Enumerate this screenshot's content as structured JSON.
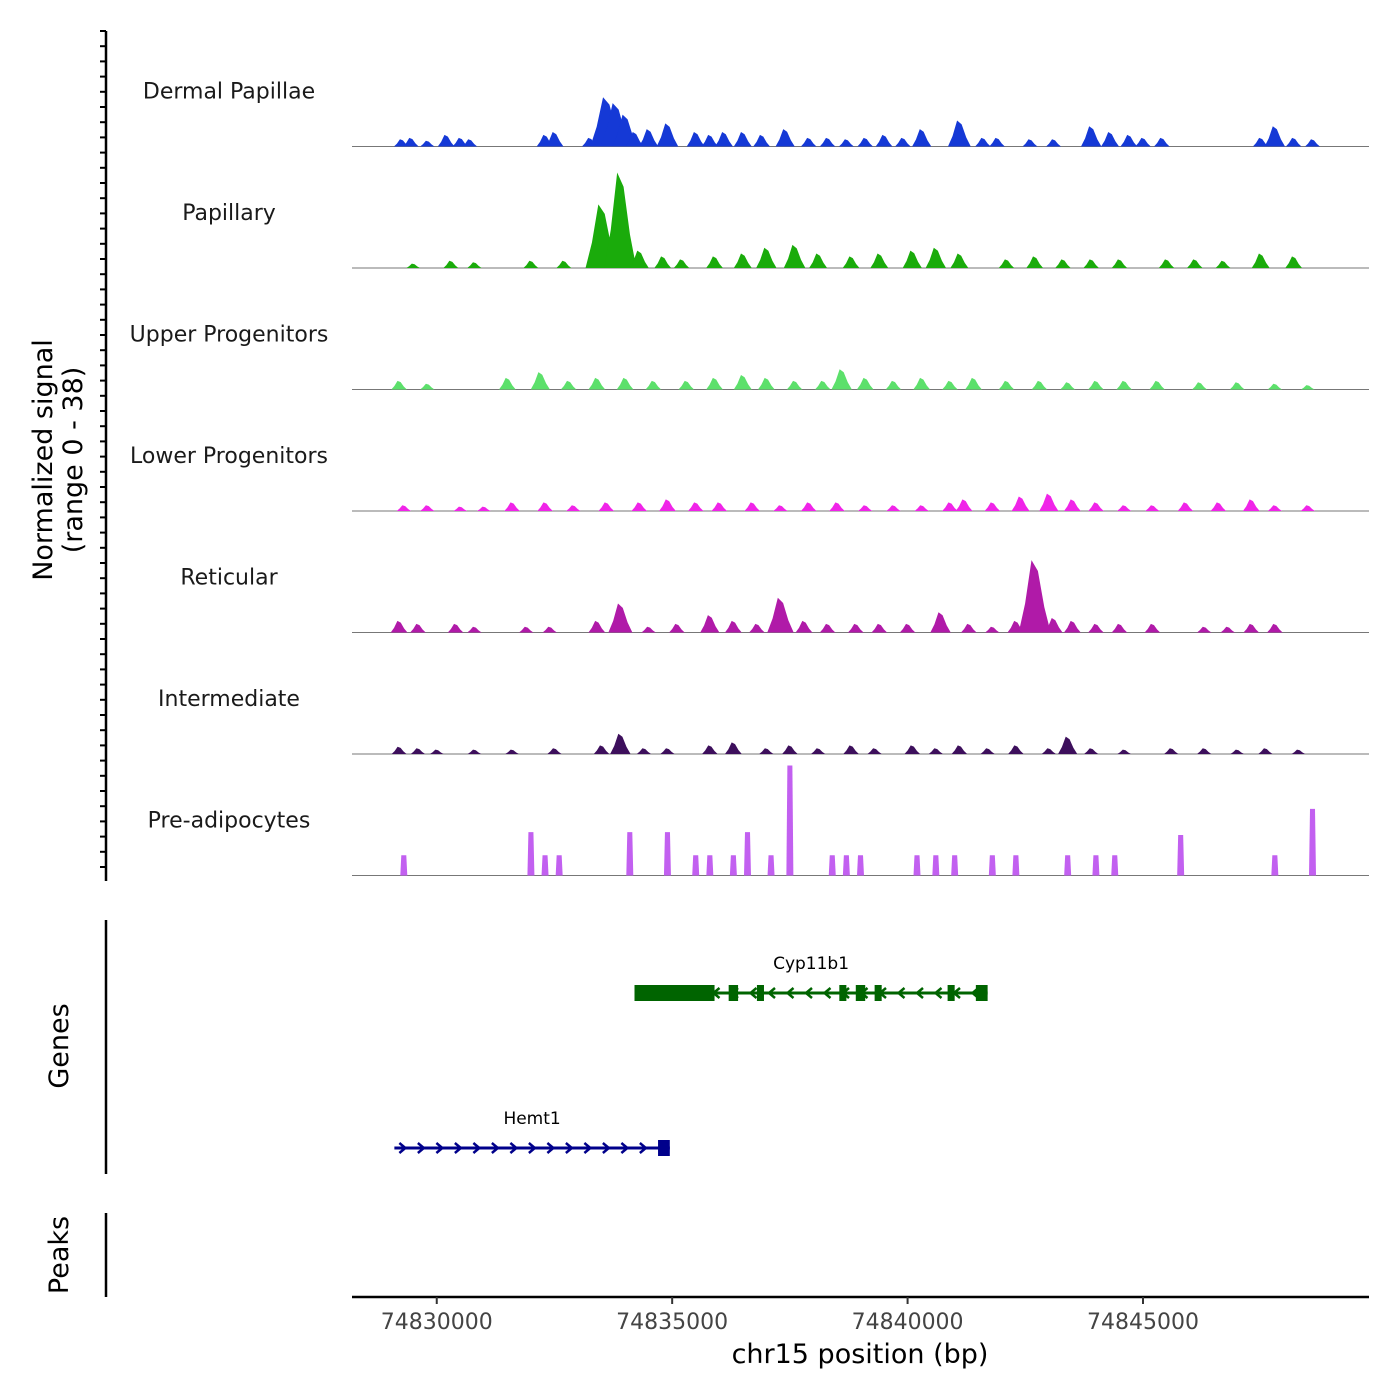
{
  "chart_data": {
    "type": "area",
    "title": "",
    "region": "chr15",
    "xlabel": "chr15 position (bp)",
    "ylabel_line1": "Normalized signal",
    "ylabel_line2": "(range 0 - 38)",
    "xlim": [
      74828200,
      74849800
    ],
    "ylim": [
      0,
      38
    ],
    "x_ticks": [
      74830000,
      74835000,
      74840000,
      74845000
    ],
    "x_tick_labels": [
      "74830000",
      "74835000",
      "74840000",
      "74845000"
    ],
    "panels": {
      "genes": "Genes",
      "peaks": "Peaks"
    },
    "tracks": [
      {
        "name": "Dermal Papillae",
        "color": "#1539d6",
        "peaks": [
          {
            "x": 74829250,
            "h": 2.5
          },
          {
            "x": 74829450,
            "h": 3
          },
          {
            "x": 74829800,
            "h": 2
          },
          {
            "x": 74830200,
            "h": 4
          },
          {
            "x": 74830500,
            "h": 3
          },
          {
            "x": 74830700,
            "h": 2.5
          },
          {
            "x": 74832300,
            "h": 4
          },
          {
            "x": 74832500,
            "h": 5
          },
          {
            "x": 74833250,
            "h": 3
          },
          {
            "x": 74833600,
            "h": 17
          },
          {
            "x": 74833800,
            "h": 15
          },
          {
            "x": 74834000,
            "h": 11
          },
          {
            "x": 74834200,
            "h": 5
          },
          {
            "x": 74834500,
            "h": 6
          },
          {
            "x": 74834900,
            "h": 8
          },
          {
            "x": 74835500,
            "h": 5
          },
          {
            "x": 74835800,
            "h": 4
          },
          {
            "x": 74836100,
            "h": 5
          },
          {
            "x": 74836500,
            "h": 5
          },
          {
            "x": 74836900,
            "h": 4
          },
          {
            "x": 74837400,
            "h": 6
          },
          {
            "x": 74837900,
            "h": 3
          },
          {
            "x": 74838300,
            "h": 3
          },
          {
            "x": 74838700,
            "h": 2.5
          },
          {
            "x": 74839100,
            "h": 3
          },
          {
            "x": 74839500,
            "h": 4
          },
          {
            "x": 74839900,
            "h": 3
          },
          {
            "x": 74840300,
            "h": 6
          },
          {
            "x": 74841100,
            "h": 9
          },
          {
            "x": 74841600,
            "h": 3
          },
          {
            "x": 74841900,
            "h": 3
          },
          {
            "x": 74842600,
            "h": 2.5
          },
          {
            "x": 74843100,
            "h": 2.5
          },
          {
            "x": 74843900,
            "h": 7
          },
          {
            "x": 74844300,
            "h": 5
          },
          {
            "x": 74844700,
            "h": 4
          },
          {
            "x": 74845000,
            "h": 3
          },
          {
            "x": 74845400,
            "h": 3
          },
          {
            "x": 74847500,
            "h": 3
          },
          {
            "x": 74847800,
            "h": 7
          },
          {
            "x": 74848200,
            "h": 3
          },
          {
            "x": 74848600,
            "h": 2.5
          }
        ]
      },
      {
        "name": "Papillary",
        "color": "#1aab0b",
        "peaks": [
          {
            "x": 74829500,
            "h": 1.5
          },
          {
            "x": 74830300,
            "h": 2.5
          },
          {
            "x": 74830800,
            "h": 2
          },
          {
            "x": 74832000,
            "h": 2.5
          },
          {
            "x": 74832700,
            "h": 2.5
          },
          {
            "x": 74833500,
            "h": 22
          },
          {
            "x": 74833900,
            "h": 33
          },
          {
            "x": 74834300,
            "h": 6
          },
          {
            "x": 74834800,
            "h": 4
          },
          {
            "x": 74835200,
            "h": 3
          },
          {
            "x": 74835900,
            "h": 4
          },
          {
            "x": 74836500,
            "h": 5
          },
          {
            "x": 74837000,
            "h": 7
          },
          {
            "x": 74837600,
            "h": 8
          },
          {
            "x": 74838100,
            "h": 5
          },
          {
            "x": 74838800,
            "h": 4
          },
          {
            "x": 74839400,
            "h": 5
          },
          {
            "x": 74840100,
            "h": 6
          },
          {
            "x": 74840600,
            "h": 7
          },
          {
            "x": 74841100,
            "h": 5
          },
          {
            "x": 74842100,
            "h": 3
          },
          {
            "x": 74842700,
            "h": 4
          },
          {
            "x": 74843300,
            "h": 3
          },
          {
            "x": 74843900,
            "h": 3
          },
          {
            "x": 74844500,
            "h": 3
          },
          {
            "x": 74845500,
            "h": 3
          },
          {
            "x": 74846100,
            "h": 3
          },
          {
            "x": 74846700,
            "h": 2.5
          },
          {
            "x": 74847500,
            "h": 5
          },
          {
            "x": 74848200,
            "h": 4
          }
        ]
      },
      {
        "name": "Upper Progenitors",
        "color": "#5ce06b",
        "peaks": [
          {
            "x": 74829200,
            "h": 3
          },
          {
            "x": 74829800,
            "h": 2
          },
          {
            "x": 74831500,
            "h": 4
          },
          {
            "x": 74832200,
            "h": 6
          },
          {
            "x": 74832800,
            "h": 3
          },
          {
            "x": 74833400,
            "h": 4
          },
          {
            "x": 74834000,
            "h": 4
          },
          {
            "x": 74834600,
            "h": 3
          },
          {
            "x": 74835300,
            "h": 3
          },
          {
            "x": 74835900,
            "h": 4
          },
          {
            "x": 74836500,
            "h": 5
          },
          {
            "x": 74837000,
            "h": 4
          },
          {
            "x": 74837600,
            "h": 3
          },
          {
            "x": 74838200,
            "h": 3
          },
          {
            "x": 74838600,
            "h": 7
          },
          {
            "x": 74839100,
            "h": 4
          },
          {
            "x": 74839700,
            "h": 3
          },
          {
            "x": 74840300,
            "h": 4
          },
          {
            "x": 74840900,
            "h": 3
          },
          {
            "x": 74841400,
            "h": 4
          },
          {
            "x": 74842100,
            "h": 3
          },
          {
            "x": 74842800,
            "h": 3
          },
          {
            "x": 74843400,
            "h": 2.5
          },
          {
            "x": 74844000,
            "h": 3
          },
          {
            "x": 74844600,
            "h": 3
          },
          {
            "x": 74845300,
            "h": 3
          },
          {
            "x": 74846200,
            "h": 2.5
          },
          {
            "x": 74847000,
            "h": 2.5
          },
          {
            "x": 74847800,
            "h": 2
          },
          {
            "x": 74848500,
            "h": 1.5
          }
        ]
      },
      {
        "name": "Lower Progenitors",
        "color": "#f024e8",
        "peaks": [
          {
            "x": 74829300,
            "h": 2
          },
          {
            "x": 74829800,
            "h": 2
          },
          {
            "x": 74830500,
            "h": 1.5
          },
          {
            "x": 74831000,
            "h": 1.5
          },
          {
            "x": 74831600,
            "h": 3
          },
          {
            "x": 74832300,
            "h": 3
          },
          {
            "x": 74832900,
            "h": 2
          },
          {
            "x": 74833600,
            "h": 3
          },
          {
            "x": 74834300,
            "h": 3
          },
          {
            "x": 74834900,
            "h": 4
          },
          {
            "x": 74835500,
            "h": 3
          },
          {
            "x": 74836000,
            "h": 3
          },
          {
            "x": 74836700,
            "h": 3
          },
          {
            "x": 74837300,
            "h": 2
          },
          {
            "x": 74837900,
            "h": 3
          },
          {
            "x": 74838500,
            "h": 3
          },
          {
            "x": 74839100,
            "h": 2
          },
          {
            "x": 74839700,
            "h": 2
          },
          {
            "x": 74840300,
            "h": 2
          },
          {
            "x": 74840900,
            "h": 3
          },
          {
            "x": 74841200,
            "h": 4
          },
          {
            "x": 74841800,
            "h": 3
          },
          {
            "x": 74842400,
            "h": 5
          },
          {
            "x": 74843000,
            "h": 6
          },
          {
            "x": 74843500,
            "h": 4
          },
          {
            "x": 74844000,
            "h": 3
          },
          {
            "x": 74844600,
            "h": 2
          },
          {
            "x": 74845200,
            "h": 2
          },
          {
            "x": 74845900,
            "h": 3
          },
          {
            "x": 74846600,
            "h": 3
          },
          {
            "x": 74847300,
            "h": 4
          },
          {
            "x": 74847800,
            "h": 2
          },
          {
            "x": 74848500,
            "h": 2
          }
        ]
      },
      {
        "name": "Reticular",
        "color": "#b01aa8",
        "peaks": [
          {
            "x": 74829200,
            "h": 4
          },
          {
            "x": 74829600,
            "h": 3
          },
          {
            "x": 74830400,
            "h": 3
          },
          {
            "x": 74830800,
            "h": 2
          },
          {
            "x": 74831900,
            "h": 2
          },
          {
            "x": 74832400,
            "h": 2
          },
          {
            "x": 74833400,
            "h": 4
          },
          {
            "x": 74833900,
            "h": 10
          },
          {
            "x": 74834500,
            "h": 2
          },
          {
            "x": 74835100,
            "h": 3
          },
          {
            "x": 74835800,
            "h": 6
          },
          {
            "x": 74836300,
            "h": 4
          },
          {
            "x": 74836800,
            "h": 3
          },
          {
            "x": 74837300,
            "h": 12
          },
          {
            "x": 74837800,
            "h": 4
          },
          {
            "x": 74838300,
            "h": 3
          },
          {
            "x": 74838900,
            "h": 3
          },
          {
            "x": 74839400,
            "h": 3
          },
          {
            "x": 74840000,
            "h": 3
          },
          {
            "x": 74840700,
            "h": 7
          },
          {
            "x": 74841300,
            "h": 3
          },
          {
            "x": 74841800,
            "h": 2
          },
          {
            "x": 74842300,
            "h": 4
          },
          {
            "x": 74842700,
            "h": 25
          },
          {
            "x": 74843100,
            "h": 5
          },
          {
            "x": 74843500,
            "h": 4
          },
          {
            "x": 74844000,
            "h": 3
          },
          {
            "x": 74844500,
            "h": 3
          },
          {
            "x": 74845200,
            "h": 3
          },
          {
            "x": 74846300,
            "h": 2
          },
          {
            "x": 74846800,
            "h": 2
          },
          {
            "x": 74847300,
            "h": 3
          },
          {
            "x": 74847800,
            "h": 3
          }
        ]
      },
      {
        "name": "Intermediate",
        "color": "#3d0f5c",
        "peaks": [
          {
            "x": 74829200,
            "h": 2.5
          },
          {
            "x": 74829600,
            "h": 2
          },
          {
            "x": 74830000,
            "h": 1.5
          },
          {
            "x": 74830800,
            "h": 1.5
          },
          {
            "x": 74831600,
            "h": 1.5
          },
          {
            "x": 74832500,
            "h": 2
          },
          {
            "x": 74833500,
            "h": 3
          },
          {
            "x": 74833900,
            "h": 7
          },
          {
            "x": 74834400,
            "h": 2
          },
          {
            "x": 74834900,
            "h": 2
          },
          {
            "x": 74835800,
            "h": 3
          },
          {
            "x": 74836300,
            "h": 4
          },
          {
            "x": 74837000,
            "h": 2
          },
          {
            "x": 74837500,
            "h": 3
          },
          {
            "x": 74838100,
            "h": 2
          },
          {
            "x": 74838800,
            "h": 3
          },
          {
            "x": 74839300,
            "h": 2
          },
          {
            "x": 74840100,
            "h": 3
          },
          {
            "x": 74840600,
            "h": 2
          },
          {
            "x": 74841100,
            "h": 3
          },
          {
            "x": 74841700,
            "h": 2
          },
          {
            "x": 74842300,
            "h": 3
          },
          {
            "x": 74843000,
            "h": 2
          },
          {
            "x": 74843400,
            "h": 6
          },
          {
            "x": 74843900,
            "h": 2
          },
          {
            "x": 74844600,
            "h": 1.5
          },
          {
            "x": 74845600,
            "h": 2
          },
          {
            "x": 74846300,
            "h": 2
          },
          {
            "x": 74847000,
            "h": 1.5
          },
          {
            "x": 74847600,
            "h": 2
          },
          {
            "x": 74848300,
            "h": 1.5
          }
        ]
      },
      {
        "name": "Pre-adipocytes",
        "color": "#c260f0",
        "peaks": [
          {
            "x": 74829300,
            "h": 7
          },
          {
            "x": 74832000,
            "h": 15
          },
          {
            "x": 74832300,
            "h": 7
          },
          {
            "x": 74832600,
            "h": 7
          },
          {
            "x": 74834100,
            "h": 15
          },
          {
            "x": 74834900,
            "h": 15
          },
          {
            "x": 74835500,
            "h": 7
          },
          {
            "x": 74835800,
            "h": 7
          },
          {
            "x": 74836300,
            "h": 7
          },
          {
            "x": 74836600,
            "h": 15
          },
          {
            "x": 74837100,
            "h": 7
          },
          {
            "x": 74837500,
            "h": 38
          },
          {
            "x": 74838400,
            "h": 7
          },
          {
            "x": 74838700,
            "h": 7
          },
          {
            "x": 74839000,
            "h": 7
          },
          {
            "x": 74840200,
            "h": 7
          },
          {
            "x": 74840600,
            "h": 7
          },
          {
            "x": 74841000,
            "h": 7
          },
          {
            "x": 74841800,
            "h": 7
          },
          {
            "x": 74842300,
            "h": 7
          },
          {
            "x": 74843400,
            "h": 7
          },
          {
            "x": 74844000,
            "h": 7
          },
          {
            "x": 74844400,
            "h": 7
          },
          {
            "x": 74845800,
            "h": 14
          },
          {
            "x": 74847800,
            "h": 7
          },
          {
            "x": 74848600,
            "h": 23
          }
        ]
      }
    ],
    "genes": [
      {
        "name": "Cyp11b1",
        "color": "#006400",
        "strand": "-",
        "start": 74834200,
        "end": 74841700,
        "exons": [
          {
            "start": 74834200,
            "end": 74835900
          },
          {
            "start": 74836200,
            "end": 74836400
          },
          {
            "start": 74836800,
            "end": 74836950
          },
          {
            "start": 74838550,
            "end": 74838700
          },
          {
            "start": 74838900,
            "end": 74839100
          },
          {
            "start": 74839300,
            "end": 74839450
          },
          {
            "start": 74840850,
            "end": 74841000
          },
          {
            "start": 74841450,
            "end": 74841700
          }
        ]
      },
      {
        "name": "Hemt1",
        "color": "#00008b",
        "strand": "+",
        "start": 74829100,
        "end": 74834950,
        "exons": [
          {
            "start": 74834700,
            "end": 74834950
          }
        ]
      }
    ]
  }
}
